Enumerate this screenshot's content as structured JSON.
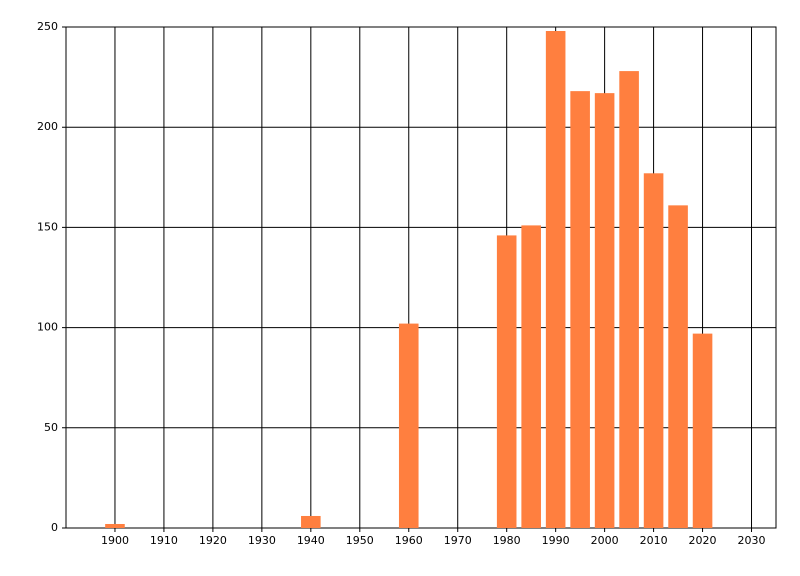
{
  "chart_data": {
    "type": "bar",
    "x": [
      1900,
      1940,
      1960,
      1980,
      1985,
      1990,
      1995,
      2000,
      2005,
      2010,
      2015,
      2020
    ],
    "values": [
      2,
      6,
      102,
      146,
      151,
      248,
      218,
      217,
      228,
      177,
      161,
      97
    ],
    "color": "#ff7f3f",
    "xlim": [
      1890,
      2035
    ],
    "xticks": [
      1900,
      1910,
      1920,
      1930,
      1940,
      1950,
      1960,
      1970,
      1980,
      1990,
      2000,
      2010,
      2020,
      2030
    ],
    "ylim": [
      0,
      250
    ],
    "yticks": [
      0,
      50,
      100,
      150,
      200,
      250
    ],
    "grid": true
  }
}
